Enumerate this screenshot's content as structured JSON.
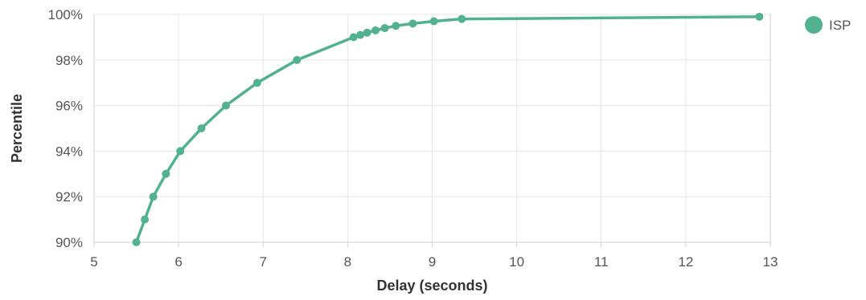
{
  "chart_data": {
    "type": "line",
    "xlabel": "Delay (seconds)",
    "ylabel": "Percentile",
    "xlim": [
      5,
      13
    ],
    "ylim": [
      90,
      100
    ],
    "x_ticks": [
      "5",
      "6",
      "7",
      "8",
      "9",
      "10",
      "11",
      "12",
      "13"
    ],
    "y_ticks": [
      "90%",
      "92%",
      "94%",
      "96%",
      "98%",
      "100%"
    ],
    "grid": true,
    "legend_position": "top-right",
    "series": [
      {
        "name": "ISP",
        "color": "#52b18e",
        "x": [
          5.5,
          5.6,
          5.7,
          5.85,
          6.02,
          6.27,
          6.56,
          6.93,
          7.4,
          8.07,
          8.15,
          8.23,
          8.33,
          8.44,
          8.57,
          8.77,
          9.02,
          9.35,
          12.87
        ],
        "y": [
          90,
          91,
          92,
          93,
          94,
          95,
          96,
          97,
          98,
          99,
          99.1,
          99.2,
          99.3,
          99.4,
          99.5,
          99.6,
          99.7,
          99.8,
          99.9
        ]
      }
    ]
  }
}
